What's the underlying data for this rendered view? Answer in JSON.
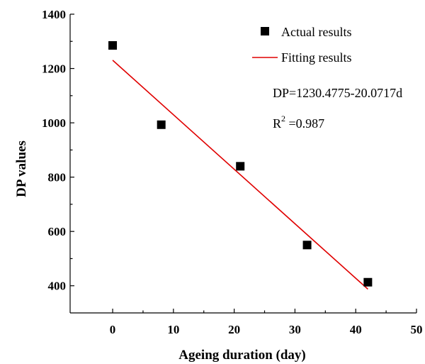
{
  "chart_data": {
    "type": "scatter",
    "xlabel": "Ageing duration (day)",
    "ylabel": "DP values",
    "xlim": [
      -7,
      50
    ],
    "ylim": [
      300,
      1400
    ],
    "xticks": [
      0,
      10,
      20,
      30,
      40,
      50
    ],
    "yticks": [
      400,
      600,
      800,
      1000,
      1200,
      1400
    ],
    "grid": false,
    "legend_position": "top-right",
    "series": [
      {
        "name": "Actual results",
        "kind": "scatter",
        "marker": "square",
        "color": "#000000",
        "x": [
          0,
          8,
          21,
          32,
          42
        ],
        "y": [
          1285,
          993,
          840,
          550,
          413
        ]
      },
      {
        "name": "Fitting results",
        "kind": "line",
        "color": "#e00000",
        "x": [
          0,
          42
        ],
        "y": [
          1230.4775,
          387.4661
        ]
      }
    ],
    "annotations": {
      "equation": "DP=1230.4775-20.0717d",
      "r2_prefix": "R",
      "r2_sup": "2",
      "r2_value": " =0.987"
    }
  }
}
